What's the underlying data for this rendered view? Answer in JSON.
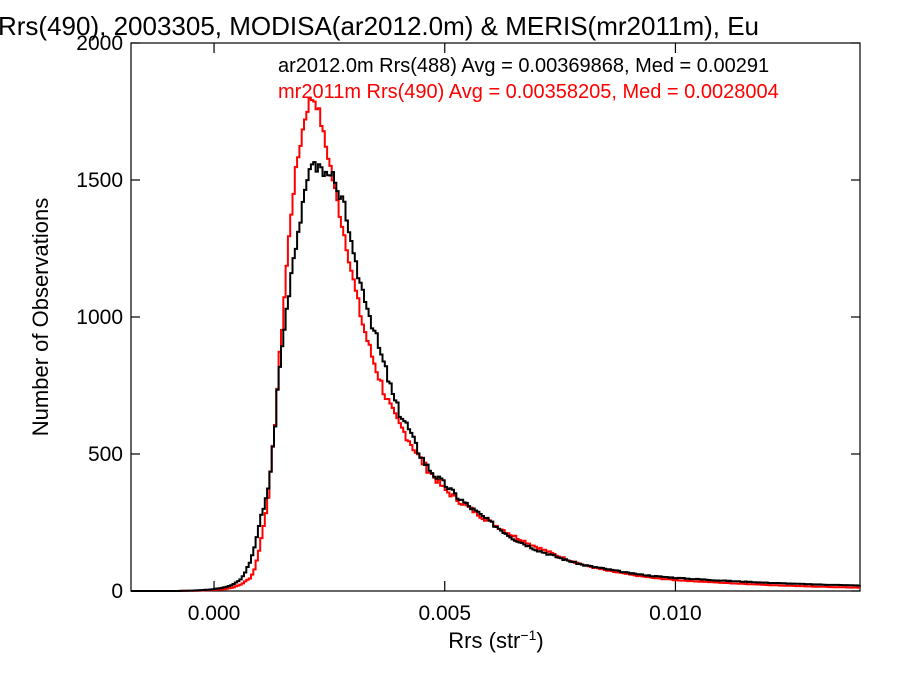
{
  "chart_data": {
    "type": "line",
    "title": "Rrs(490), 2003305, MODISA(ar2012.0m) & MERIS(mr2011m), Eu",
    "xlabel": "Rrs (str",
    "xlabel_sup": "−1",
    "xlabel_close": ")",
    "ylabel": "Number of Observations",
    "xlim": [
      -0.0018,
      0.014
    ],
    "ylim": [
      0,
      2000
    ],
    "x_ticks": [
      0.0,
      0.005,
      0.01
    ],
    "x_tick_labels": [
      "0.000",
      "0.005",
      "0.010"
    ],
    "y_ticks": [
      0,
      500,
      1000,
      1500,
      2000
    ],
    "y_tick_labels": [
      "0",
      "500",
      "1000",
      "1500",
      "2000"
    ],
    "legend_position": "top-right",
    "colors": {
      "series1": "#000000",
      "series2": "#ff0000"
    },
    "series": [
      {
        "name": "ar2012.0m Rrs(488) Avg = 0.00369868, Med = 0.00291",
        "points": [
          [
            -0.0018,
            0
          ],
          [
            -0.0008,
            0
          ],
          [
            -0.0004,
            2
          ],
          [
            -0.0001,
            5
          ],
          [
            0.0002,
            12
          ],
          [
            0.0004,
            22
          ],
          [
            0.0006,
            45
          ],
          [
            0.0008,
            110
          ],
          [
            0.0009,
            180
          ],
          [
            0.001,
            260
          ],
          [
            0.0011,
            310
          ],
          [
            0.0012,
            400
          ],
          [
            0.0013,
            560
          ],
          [
            0.0014,
            780
          ],
          [
            0.0015,
            930
          ],
          [
            0.0016,
            1060
          ],
          [
            0.0017,
            1200
          ],
          [
            0.0018,
            1290
          ],
          [
            0.0019,
            1380
          ],
          [
            0.002,
            1470
          ],
          [
            0.0021,
            1580
          ],
          [
            0.0022,
            1540
          ],
          [
            0.0023,
            1555
          ],
          [
            0.0024,
            1510
          ],
          [
            0.0025,
            1545
          ],
          [
            0.0026,
            1500
          ],
          [
            0.0027,
            1430
          ],
          [
            0.0028,
            1420
          ],
          [
            0.0029,
            1350
          ],
          [
            0.003,
            1230
          ],
          [
            0.0031,
            1170
          ],
          [
            0.0032,
            1110
          ],
          [
            0.0033,
            1060
          ],
          [
            0.0034,
            990
          ],
          [
            0.0035,
            940
          ],
          [
            0.0036,
            870
          ],
          [
            0.0037,
            820
          ],
          [
            0.0038,
            760
          ],
          [
            0.0039,
            700
          ],
          [
            0.004,
            660
          ],
          [
            0.0042,
            600
          ],
          [
            0.0044,
            520
          ],
          [
            0.0046,
            460
          ],
          [
            0.0048,
            420
          ],
          [
            0.005,
            390
          ],
          [
            0.0053,
            340
          ],
          [
            0.0056,
            300
          ],
          [
            0.006,
            250
          ],
          [
            0.0065,
            190
          ],
          [
            0.007,
            150
          ],
          [
            0.0075,
            120
          ],
          [
            0.008,
            95
          ],
          [
            0.0085,
            80
          ],
          [
            0.009,
            65
          ],
          [
            0.0095,
            55
          ],
          [
            0.01,
            48
          ],
          [
            0.011,
            38
          ],
          [
            0.012,
            30
          ],
          [
            0.013,
            24
          ],
          [
            0.014,
            20
          ]
        ]
      },
      {
        "name": "mr2011m Rrs(490) Avg = 0.00358205, Med = 0.0028004",
        "points": [
          [
            -0.0018,
            0
          ],
          [
            -0.0008,
            0
          ],
          [
            -0.0004,
            1
          ],
          [
            -0.0001,
            3
          ],
          [
            0.0002,
            6
          ],
          [
            0.0004,
            12
          ],
          [
            0.0006,
            25
          ],
          [
            0.0008,
            50
          ],
          [
            0.0009,
            90
          ],
          [
            0.001,
            170
          ],
          [
            0.0011,
            260
          ],
          [
            0.0012,
            380
          ],
          [
            0.0013,
            560
          ],
          [
            0.0014,
            800
          ],
          [
            0.0015,
            1020
          ],
          [
            0.0016,
            1240
          ],
          [
            0.0017,
            1430
          ],
          [
            0.0018,
            1560
          ],
          [
            0.0019,
            1660
          ],
          [
            0.002,
            1750
          ],
          [
            0.0021,
            1800
          ],
          [
            0.0022,
            1790
          ],
          [
            0.0023,
            1730
          ],
          [
            0.0024,
            1640
          ],
          [
            0.0025,
            1570
          ],
          [
            0.0026,
            1480
          ],
          [
            0.0027,
            1400
          ],
          [
            0.0028,
            1320
          ],
          [
            0.0029,
            1240
          ],
          [
            0.003,
            1150
          ],
          [
            0.0031,
            1070
          ],
          [
            0.0032,
            990
          ],
          [
            0.0033,
            930
          ],
          [
            0.0034,
            870
          ],
          [
            0.0035,
            820
          ],
          [
            0.0036,
            770
          ],
          [
            0.0037,
            720
          ],
          [
            0.0038,
            680
          ],
          [
            0.0039,
            640
          ],
          [
            0.004,
            610
          ],
          [
            0.0042,
            560
          ],
          [
            0.0044,
            500
          ],
          [
            0.0046,
            450
          ],
          [
            0.0048,
            410
          ],
          [
            0.005,
            370
          ],
          [
            0.0053,
            330
          ],
          [
            0.0056,
            295
          ],
          [
            0.006,
            250
          ],
          [
            0.0065,
            200
          ],
          [
            0.007,
            160
          ],
          [
            0.0075,
            125
          ],
          [
            0.008,
            95
          ],
          [
            0.0085,
            75
          ],
          [
            0.009,
            60
          ],
          [
            0.0095,
            48
          ],
          [
            0.01,
            40
          ],
          [
            0.011,
            30
          ],
          [
            0.012,
            22
          ],
          [
            0.013,
            16
          ],
          [
            0.014,
            12
          ]
        ]
      }
    ]
  }
}
